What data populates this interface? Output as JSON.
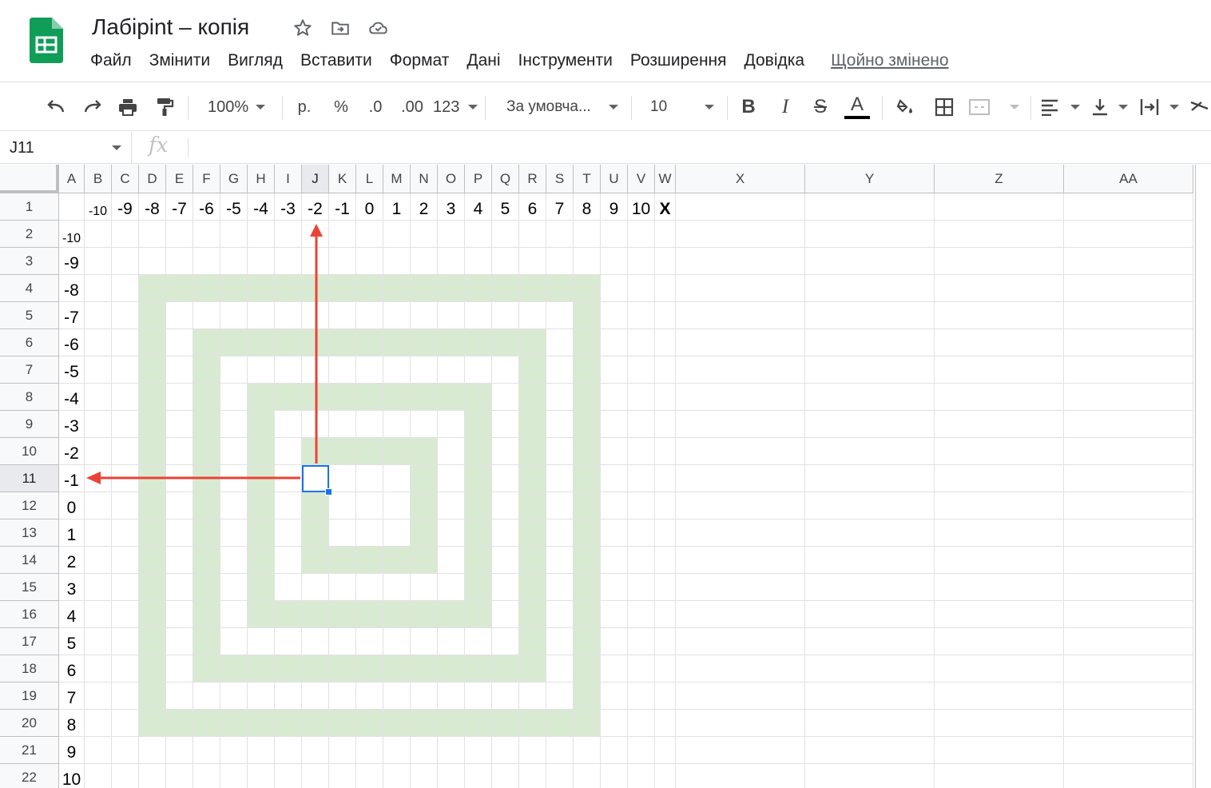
{
  "app": {
    "title": "Лабірint – копія",
    "accent": "#0f9d58"
  },
  "header": {
    "star_icon": "star-icon",
    "move_icon": "folder-move-icon",
    "cloud_icon": "cloud-saved-icon"
  },
  "menu": {
    "items": [
      "Файл",
      "Змінити",
      "Вигляд",
      "Вставити",
      "Формат",
      "Дані",
      "Інструменти",
      "Розширення",
      "Довідка"
    ],
    "last_edit": "Щойно змінено"
  },
  "toolbar": {
    "zoom": "100%",
    "currency": "р.",
    "percent": "%",
    "dec_decrease": ".0",
    "dec_increase": ".00",
    "more_formats": "123",
    "font": "За умовча...",
    "font_size": "10",
    "bold": "B",
    "italic": "I",
    "strike": "S",
    "text_color": "A"
  },
  "formula_bar": {
    "name_box": "J11",
    "fx": "fx",
    "value": ""
  },
  "sheet": {
    "columns": [
      "A",
      "B",
      "C",
      "D",
      "E",
      "F",
      "G",
      "H",
      "I",
      "J",
      "K",
      "L",
      "M",
      "N",
      "O",
      "P",
      "Q",
      "R",
      "S",
      "T",
      "U",
      "V",
      "W",
      "X",
      "Y",
      "Z",
      "AA"
    ],
    "rows": [
      "1",
      "2",
      "3",
      "4",
      "5",
      "6",
      "7",
      "8",
      "9",
      "10",
      "11",
      "12",
      "13",
      "14",
      "15",
      "16",
      "17",
      "18",
      "19",
      "20",
      "21",
      "22"
    ],
    "selected_cell": "J11",
    "selected_col": "J",
    "selected_row": "11",
    "fill_color": "#d9ead3",
    "row1_values": [
      "",
      "-10",
      "-9",
      "-8",
      "-7",
      "-6",
      "-5",
      "-4",
      "-3",
      "-2",
      "-1",
      "0",
      "1",
      "2",
      "3",
      "4",
      "5",
      "6",
      "7",
      "8",
      "9",
      "10",
      "X"
    ],
    "colA_values": [
      "-10",
      "-9",
      "-8",
      "-7",
      "-6",
      "-5",
      "-4",
      "-3",
      "-2",
      "-1",
      "0",
      "1",
      "2",
      "3",
      "4",
      "5",
      "6",
      "7",
      "8",
      "9",
      "10"
    ],
    "arrow_color": "#ea4335"
  }
}
